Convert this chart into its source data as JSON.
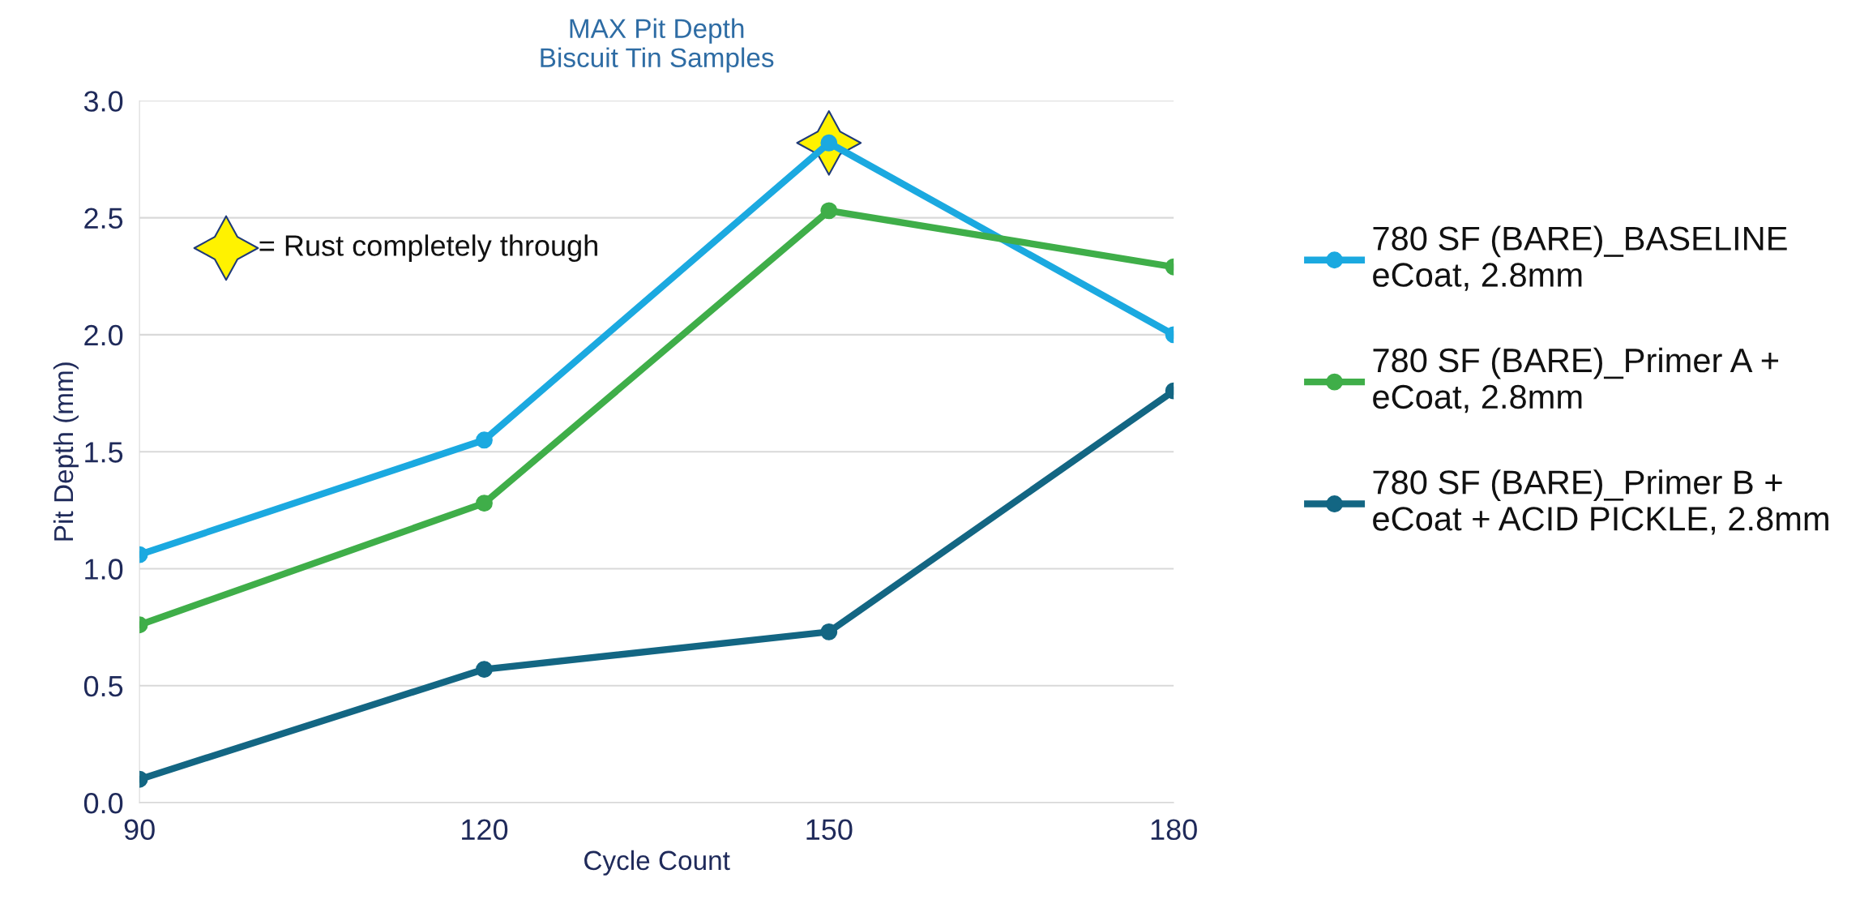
{
  "chart_data": {
    "type": "line",
    "title": "MAX Pit Depth\nBiscuit Tin Samples",
    "xlabel": "Cycle Count",
    "ylabel": "Pit Depth (mm)",
    "x": [
      90,
      120,
      150,
      180
    ],
    "xlim": [
      90,
      180
    ],
    "xticks": [
      90,
      120,
      150,
      180
    ],
    "ylim": [
      0,
      3
    ],
    "yticks": [
      {
        "value": 0,
        "label": "0.0"
      },
      0.5,
      {
        "value": 1,
        "label": "1.0"
      },
      1.5,
      {
        "value": 2,
        "label": "2.0"
      },
      2.5,
      {
        "value": 3,
        "label": "3.0"
      }
    ],
    "grid": "y",
    "legend": "right",
    "marker": "circle",
    "line_style": "solid",
    "series": [
      {
        "name": "780 SF (BARE)_BASELINE\neCoat, 2.8mm",
        "color": "#1ba9e0",
        "values": [
          1.06,
          1.55,
          2.82,
          2.0
        ]
      },
      {
        "name": "780 SF (BARE)_Primer A +\neCoat, 2.8mm",
        "color": "#3fae49",
        "values": [
          0.76,
          1.28,
          2.53,
          2.29
        ]
      },
      {
        "name": "780 SF (BARE)_Primer B +\neCoat + ACID PICKLE, 2.8mm",
        "color": "#136683",
        "values": [
          0.1,
          0.57,
          0.73,
          1.76
        ]
      },
      {
        "type": "scatter",
        "name": "= Rust completely through",
        "marker": "star",
        "color": "#fff200",
        "x": [
          150
        ],
        "values": [
          2.82
        ]
      }
    ]
  }
}
